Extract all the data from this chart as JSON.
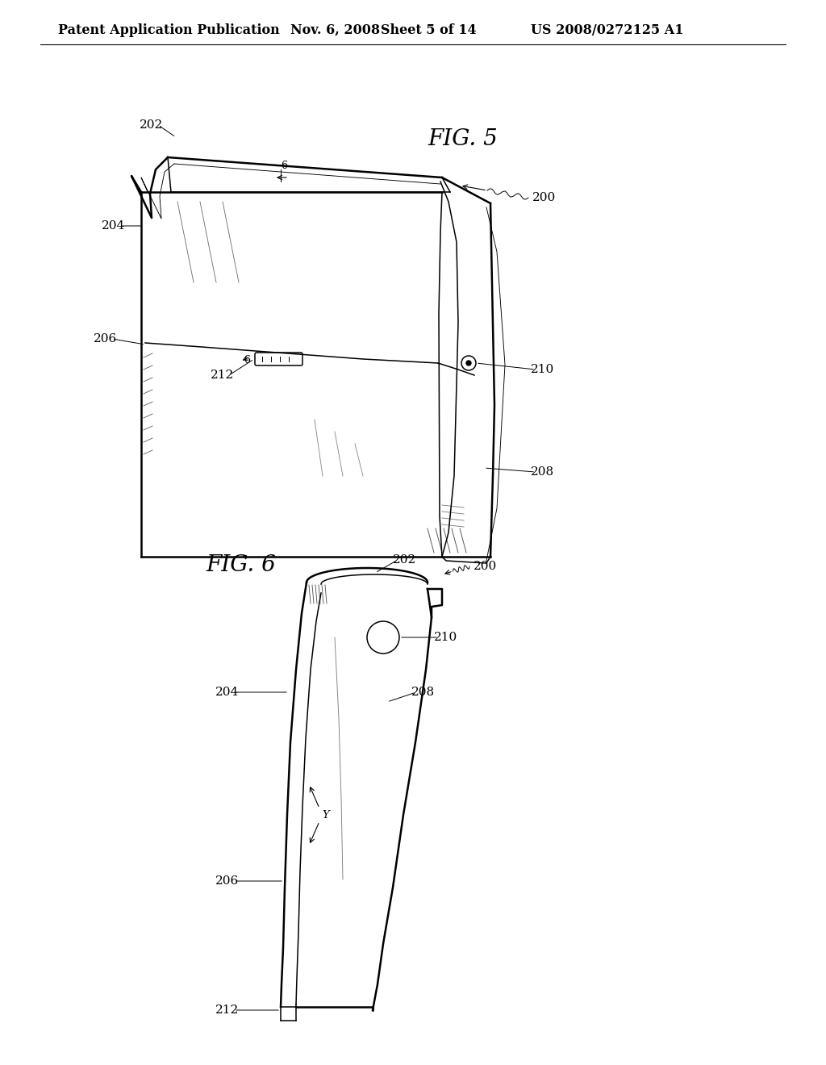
{
  "background_color": "#ffffff",
  "header_left": "Patent Application Publication",
  "header_date": "Nov. 6, 2008",
  "header_sheet": "Sheet 5 of 14",
  "header_patent": "US 2008/0272125 A1",
  "fig5_title": "FIG. 5",
  "fig6_title": "FIG. 6",
  "header_fontsize": 11.5,
  "fig_title_fontsize": 20,
  "label_fontsize": 11
}
